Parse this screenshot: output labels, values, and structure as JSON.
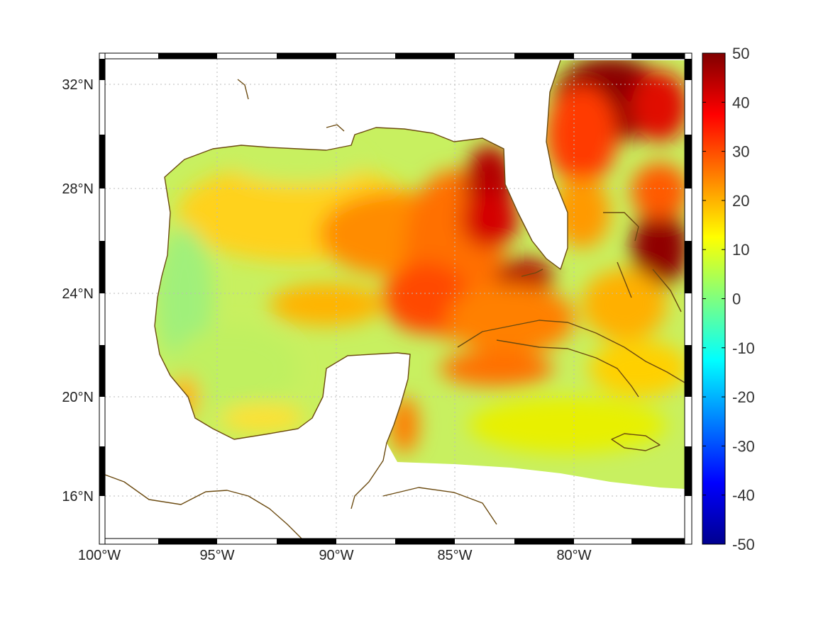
{
  "map": {
    "lon_ticks": [
      "100°W",
      "95°W",
      "90°W",
      "85°W",
      "80°W"
    ],
    "lat_ticks": [
      "32°N",
      "28°N",
      "24°N",
      "20°N",
      "16°N"
    ],
    "grid": true,
    "frame": "black-white-dashed",
    "land_color": "#ffffff",
    "coastline_color": "#6b4a10"
  },
  "colorbar": {
    "min": -50,
    "max": 50,
    "tick_labels": [
      "50",
      "40",
      "30",
      "20",
      "10",
      "0",
      "-10",
      "-20",
      "-30",
      "-40",
      "-50"
    ],
    "colormap": "jet",
    "placement": "right"
  }
}
